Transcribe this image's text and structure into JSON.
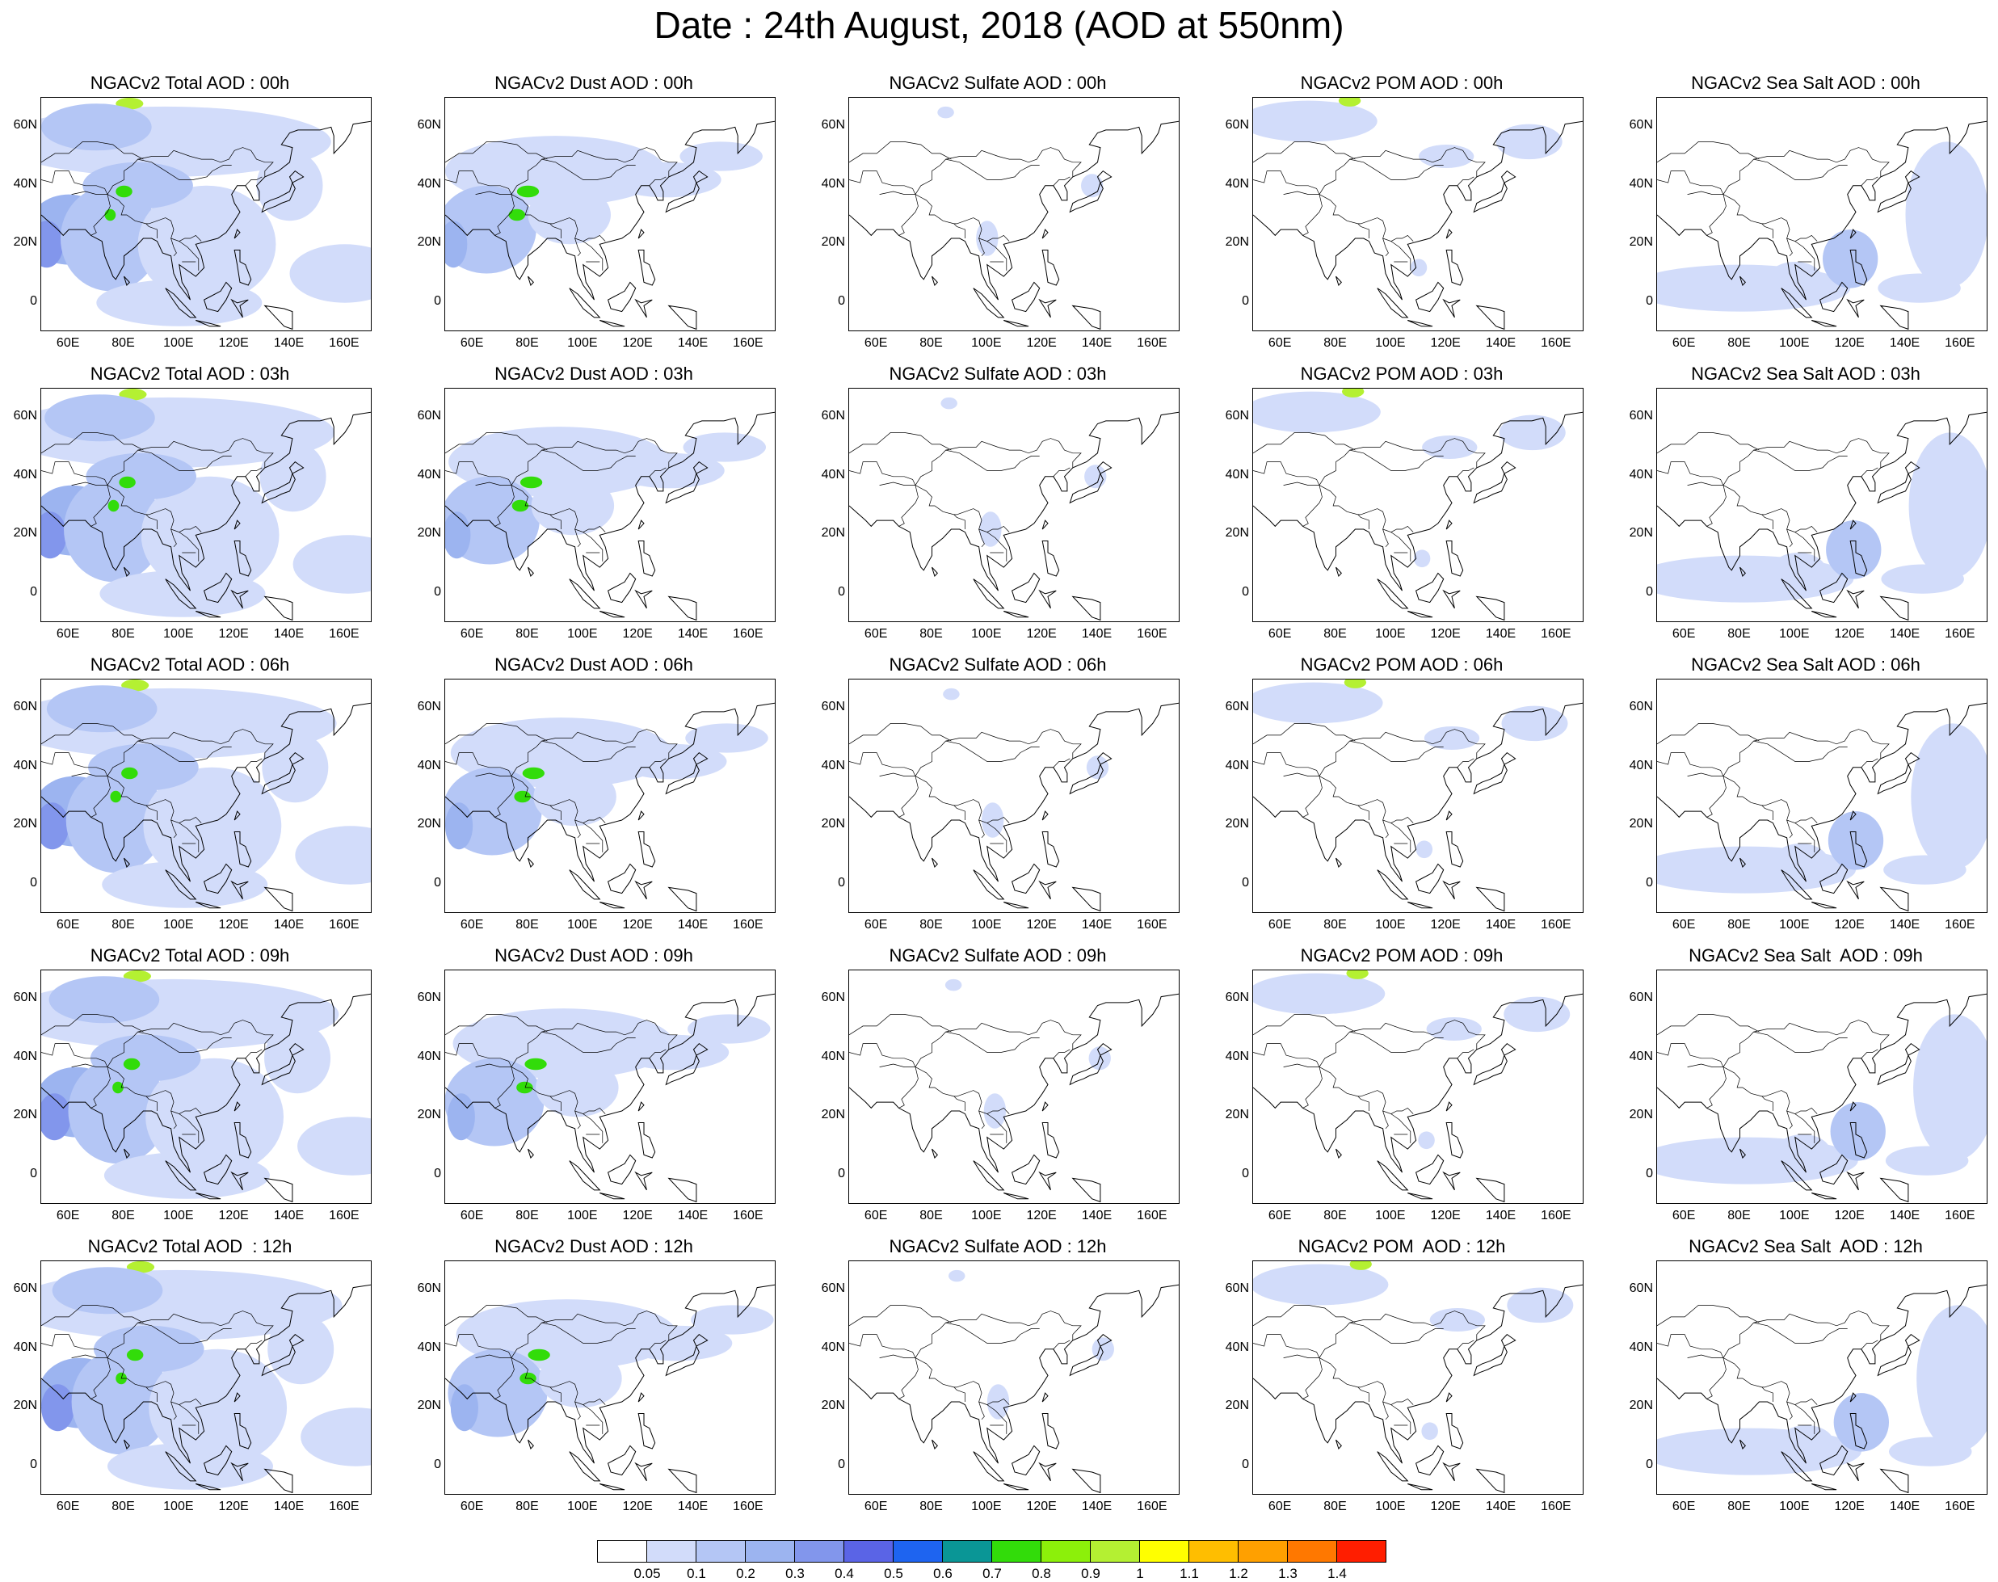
{
  "title": "Date : 24th August, 2018 (AOD at 550nm)",
  "columns": [
    "Total",
    "Dust",
    "Sulfate",
    "POM",
    "Sea Salt"
  ],
  "panels": [
    [
      "NGACv2 Total AOD : 00h",
      "NGACv2 Dust AOD : 00h",
      "NGACv2 Sulfate AOD : 00h",
      "NGACv2 POM AOD : 00h",
      "NGACv2 Sea Salt AOD : 00h"
    ],
    [
      "NGACv2 Total AOD : 03h",
      "NGACv2 Dust AOD : 03h",
      "NGACv2 Sulfate AOD : 03h",
      "NGACv2 POM AOD : 03h",
      "NGACv2 Sea Salt AOD : 03h"
    ],
    [
      "NGACv2 Total AOD : 06h",
      "NGACv2 Dust AOD : 06h",
      "NGACv2 Sulfate AOD : 06h",
      "NGACv2 POM AOD : 06h",
      "NGACv2 Sea Salt AOD : 06h"
    ],
    [
      "NGACv2 Total AOD : 09h",
      "NGACv2 Dust AOD : 09h",
      "NGACv2 Sulfate AOD : 09h",
      "NGACv2 POM AOD : 09h",
      "NGACv2 Sea Salt  AOD : 09h"
    ],
    [
      "NGACv2 Total AOD  : 12h",
      "NGACv2 Dust AOD : 12h",
      "NGACv2 Sulfate AOD : 12h",
      "NGACv2 POM  AOD : 12h",
      "NGACv2 Sea Salt  AOD : 12h"
    ]
  ],
  "map": {
    "lat_ticks": [
      "60N",
      "40N",
      "20N",
      "0"
    ],
    "lon_ticks": [
      "60E",
      "80E",
      "100E",
      "120E",
      "140E",
      "160E"
    ],
    "lat_range": [
      -10,
      70
    ],
    "lon_range": [
      50,
      170
    ]
  },
  "colorbar": {
    "labels": [
      "0.05",
      "0.1",
      "0.2",
      "0.3",
      "0.4",
      "0.5",
      "0.6",
      "0.7",
      "0.8",
      "0.9",
      "1",
      "1.1",
      "1.2",
      "1.3",
      "1.4"
    ],
    "colors": [
      "#ffffff",
      "#d2dcfa",
      "#b4c6f5",
      "#9cb4f0",
      "#8296ec",
      "#5a64e6",
      "#1e64f0",
      "#0a9696",
      "#32dc0a",
      "#8cf00a",
      "#b4f032",
      "#ffff00",
      "#ffbe00",
      "#ffa000",
      "#ff7800",
      "#ff1e00"
    ]
  }
}
